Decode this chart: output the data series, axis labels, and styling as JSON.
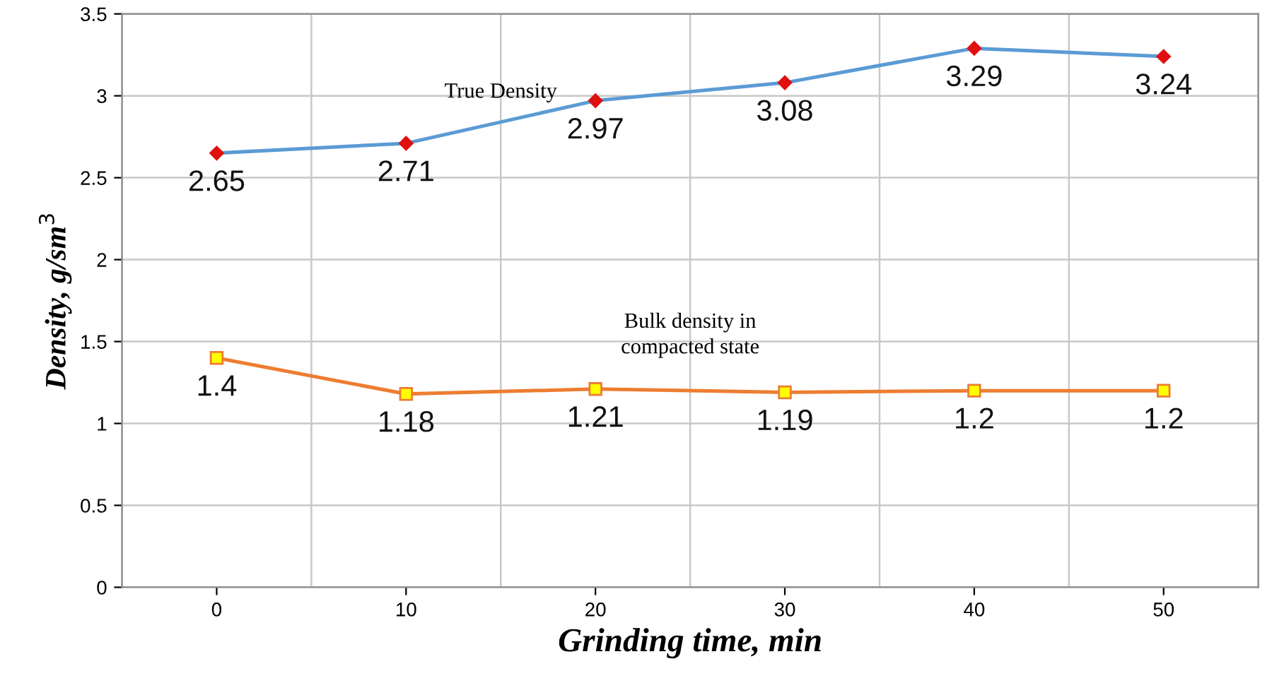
{
  "chart_data": {
    "type": "line",
    "xlabel": "Grinding time, min",
    "ylabel": "Density, g/sm$^{3}$",
    "categories": [
      "0",
      "10",
      "20",
      "30",
      "40",
      "50"
    ],
    "series": [
      {
        "name": "True Density",
        "color": "#5b9bd5",
        "marker": "diamond",
        "values": [
          2.65,
          2.71,
          2.97,
          3.08,
          3.29,
          3.24
        ]
      },
      {
        "name": "Bulk density in\ncompacted state",
        "color": "#ed7d31",
        "marker": "square",
        "values": [
          1.4,
          1.18,
          1.21,
          1.19,
          1.2,
          1.2
        ]
      }
    ],
    "ylim": [
      0,
      3.5
    ],
    "yticks": [
      0,
      0.5,
      1,
      1.5,
      2,
      2.5,
      3,
      3.5
    ],
    "grid": true,
    "data_labels": true,
    "line_style": "solid"
  }
}
